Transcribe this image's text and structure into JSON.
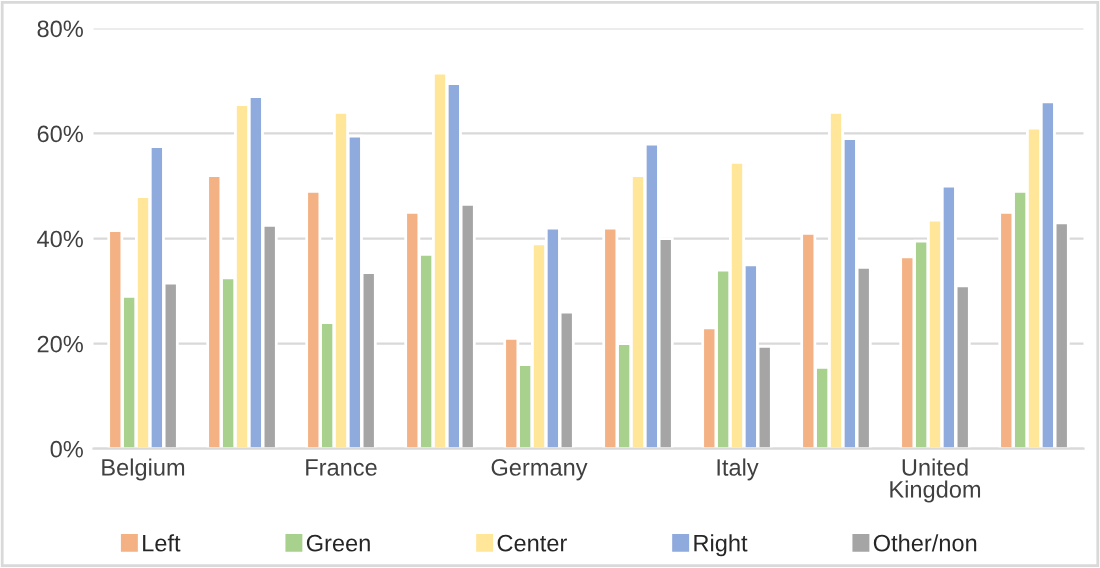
{
  "chart_data": {
    "type": "bar",
    "categories": [
      "Belgium",
      null,
      "France",
      null,
      "Germany",
      null,
      "Italy",
      null,
      "United\nKingdom",
      null
    ],
    "series": [
      {
        "name": "Left",
        "color": "#f4b183",
        "values": [
          41.5,
          52,
          49,
          45,
          21,
          42,
          23,
          41,
          36.5,
          45
        ]
      },
      {
        "name": "Green",
        "color": "#a9d18e",
        "values": [
          29,
          32.5,
          24,
          37,
          16,
          20,
          34,
          15.5,
          39.5,
          49
        ]
      },
      {
        "name": "Center",
        "color": "#ffe699",
        "values": [
          48,
          65.5,
          64,
          71.5,
          39,
          52,
          54.5,
          64,
          43.5,
          61
        ]
      },
      {
        "name": "Right",
        "color": "#8faadc",
        "values": [
          57.5,
          67,
          59.5,
          69.5,
          42,
          58,
          35,
          59,
          50,
          66
        ]
      },
      {
        "name": "Other/non",
        "color": "#a5a5a5",
        "values": [
          31.5,
          42.5,
          33.5,
          46.5,
          26,
          40,
          19.5,
          34.5,
          31,
          43
        ]
      }
    ],
    "ylim": [
      0,
      80
    ],
    "yticks": [
      {
        "value": 0,
        "label": "0%"
      },
      {
        "value": 20,
        "label": "20%"
      },
      {
        "value": 40,
        "label": "40%"
      },
      {
        "value": 60,
        "label": "60%"
      },
      {
        "value": 80,
        "label": "80%"
      }
    ],
    "grid": "y",
    "legend": "bottom"
  }
}
